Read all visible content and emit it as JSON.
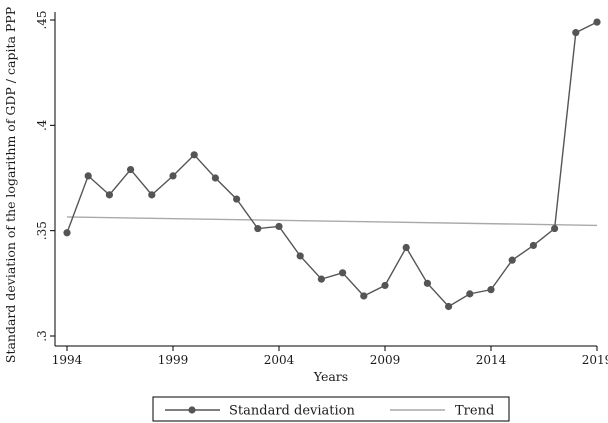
{
  "colors": {
    "series": "#555555",
    "trend": "#a9a9a9",
    "axis": "#000000",
    "background": "#ffffff"
  },
  "chart_data": {
    "type": "line",
    "title": "",
    "xlabel": "Years",
    "ylabel": "Standard deviation of the logarithm of GDP / capita PPP",
    "xlim": [
      1994,
      2019
    ],
    "ylim": [
      0.3,
      0.45
    ],
    "x_ticks": [
      1994,
      1999,
      2004,
      2009,
      2014,
      2019
    ],
    "y_ticks": [
      0.3,
      0.35,
      0.4,
      0.45
    ],
    "y_tick_labels": [
      ".3",
      ".35",
      ".4",
      ".45"
    ],
    "grid": false,
    "legend_position": "bottom",
    "x": [
      1994,
      1995,
      1996,
      1997,
      1998,
      1999,
      2000,
      2001,
      2002,
      2003,
      2004,
      2005,
      2006,
      2007,
      2008,
      2009,
      2010,
      2011,
      2012,
      2013,
      2014,
      2015,
      2016,
      2017,
      2018,
      2019
    ],
    "series": [
      {
        "name": "Standard deviation",
        "style": "line-with-markers",
        "values": [
          0.349,
          0.376,
          0.367,
          0.379,
          0.367,
          0.376,
          0.386,
          0.375,
          0.365,
          0.351,
          0.352,
          0.338,
          0.327,
          0.33,
          0.319,
          0.324,
          0.342,
          0.325,
          0.314,
          0.32,
          0.322,
          0.336,
          0.343,
          0.351,
          0.444,
          0.449
        ]
      },
      {
        "name": "Trend",
        "style": "line",
        "x": [
          1994,
          2019
        ],
        "values": [
          0.3565,
          0.3525
        ]
      }
    ]
  }
}
